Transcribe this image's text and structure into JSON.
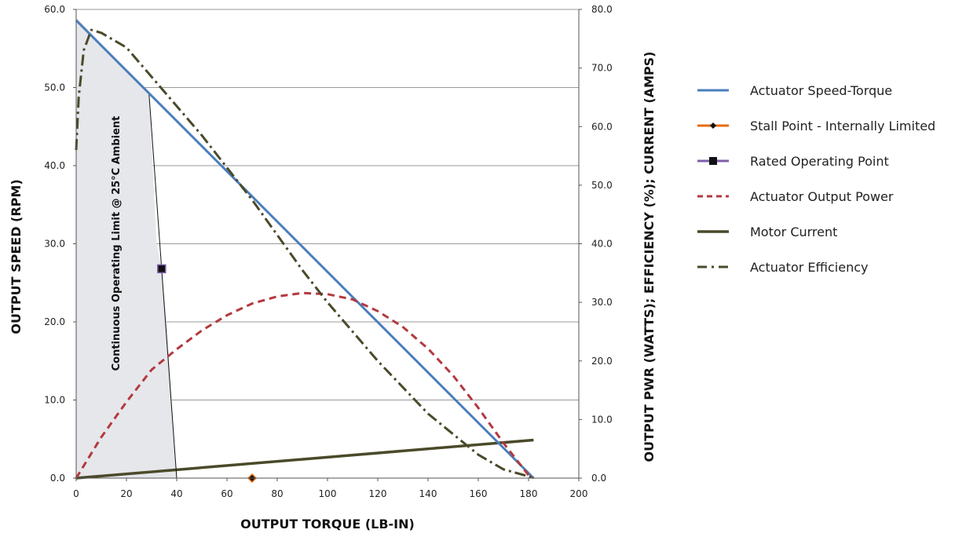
{
  "chart_data": {
    "type": "line",
    "xlabel": "OUTPUT TORQUE (LB-IN)",
    "ylabel_left": "OUTPUT SPEED (RPM)",
    "ylabel_right": "OUTPUT PWR (WATTS); EFFICIENCY (%); CURRENT (AMPS)",
    "xlim": [
      0,
      200
    ],
    "ylim_left": [
      0,
      60
    ],
    "ylim_right": [
      0,
      80
    ],
    "grid": true,
    "legend_position": "right",
    "x_ticks": [
      "0",
      "20",
      "40",
      "60",
      "80",
      "100",
      "120",
      "140",
      "160",
      "180",
      "200"
    ],
    "y_left_ticks": [
      "0.0",
      "10.0",
      "20.0",
      "30.0",
      "40.0",
      "50.0",
      "60.0"
    ],
    "y_right_ticks": [
      "0.0",
      "10.0",
      "20.0",
      "30.0",
      "40.0",
      "50.0",
      "60.0",
      "70.0",
      "80.0"
    ],
    "annotation": "Continuous Operating Limit @ 25°C Ambient",
    "colors": {
      "speed_torque": "#4a7ebb",
      "stall": "#e46c0a",
      "rated": "#7f5fa8",
      "power": "#b3393f",
      "current": "#4a4a2a",
      "efficiency": "#4a4a2a",
      "shade": "#e6e7eb"
    },
    "series": [
      {
        "name": "Actuator Speed-Torque",
        "axis": "left",
        "points": [
          [
            0,
            58.6
          ],
          [
            182,
            0
          ]
        ]
      },
      {
        "name": "Stall Point - Internally Limited",
        "axis": "left",
        "points": [
          [
            70,
            0
          ]
        ]
      },
      {
        "name": "Rated Operating Point",
        "axis": "left",
        "points": [
          [
            34,
            26.8
          ]
        ]
      },
      {
        "name": "Actuator Output Power",
        "axis": "right",
        "points": [
          [
            0,
            0
          ],
          [
            10,
            7
          ],
          [
            20,
            13
          ],
          [
            30,
            18.5
          ],
          [
            40,
            22
          ],
          [
            50,
            25.2
          ],
          [
            60,
            27.8
          ],
          [
            70,
            29.8
          ],
          [
            80,
            31
          ],
          [
            90,
            31.6
          ],
          [
            100,
            31.4
          ],
          [
            110,
            30.5
          ],
          [
            120,
            28.5
          ],
          [
            130,
            25.8
          ],
          [
            140,
            22.1
          ],
          [
            150,
            17.5
          ],
          [
            160,
            12
          ],
          [
            170,
            6
          ],
          [
            180,
            0.5
          ],
          [
            182,
            0
          ]
        ]
      },
      {
        "name": "Motor Current",
        "axis": "right",
        "points": [
          [
            0,
            0
          ],
          [
            182,
            6.5
          ]
        ]
      },
      {
        "name": "Actuator Efficiency",
        "axis": "right",
        "points": [
          [
            0,
            56
          ],
          [
            1,
            65
          ],
          [
            3,
            73
          ],
          [
            6,
            76.5
          ],
          [
            10,
            76
          ],
          [
            20,
            73.5
          ],
          [
            30,
            68.5
          ],
          [
            40,
            63.5
          ],
          [
            50,
            58.5
          ],
          [
            60,
            53
          ],
          [
            70,
            47.5
          ],
          [
            80,
            41.5
          ],
          [
            90,
            35.5
          ],
          [
            100,
            30
          ],
          [
            110,
            25
          ],
          [
            120,
            20
          ],
          [
            130,
            15.5
          ],
          [
            140,
            11
          ],
          [
            150,
            7.5
          ],
          [
            160,
            4
          ],
          [
            170,
            1.5
          ],
          [
            180,
            0.3
          ],
          [
            182,
            0
          ]
        ]
      }
    ],
    "operating_limit": {
      "points": [
        [
          0,
          59
        ],
        [
          29,
          49.1
        ],
        [
          32,
          30
        ],
        [
          34,
          26.8
        ],
        [
          36,
          20
        ],
        [
          40,
          0
        ]
      ]
    }
  }
}
